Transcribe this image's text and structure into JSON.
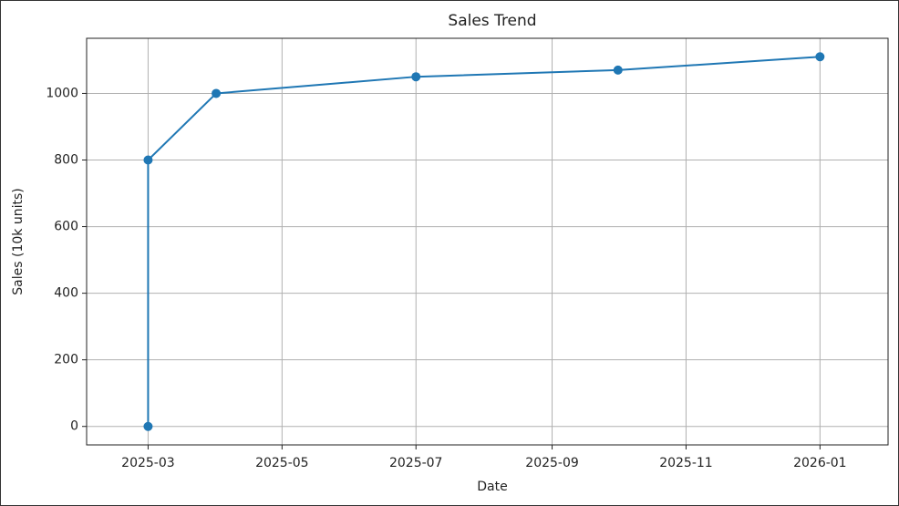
{
  "chart_data": {
    "type": "line",
    "title": "Sales Trend",
    "x_label": "Date",
    "y_label": "Sales (10k units)",
    "x": [
      "2025-03",
      "2025-03",
      "2025-04",
      "2025-07",
      "2025-10",
      "2026-01"
    ],
    "series": [
      {
        "name": "Sales",
        "color": "#1f77b4",
        "values": [
          0,
          800,
          1000,
          1050,
          1070,
          1110
        ]
      }
    ],
    "xlim": [
      "2025-02",
      "2026-02"
    ],
    "xticks": [
      "2025-03",
      "2025-05",
      "2025-07",
      "2025-09",
      "2025-11",
      "2026-01"
    ],
    "ylim": [
      -55.5,
      1165.5
    ],
    "yticks": [
      0,
      200,
      400,
      600,
      800,
      1000
    ],
    "grid": true
  }
}
